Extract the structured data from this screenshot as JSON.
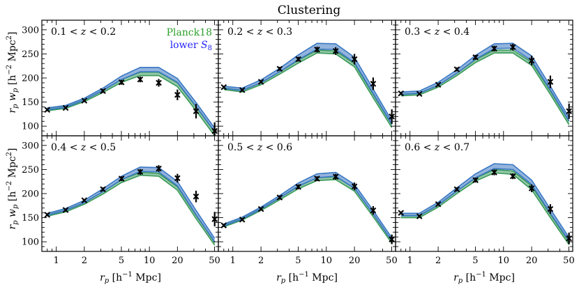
{
  "chart_data": {
    "type": "line",
    "title": "Clustering",
    "xlabel": "r_p [h^-1 Mpc]",
    "ylabel": "r_p w_p [h^-2 Mpc^2]",
    "x_scale": "log",
    "xlim": [
      0.7,
      55
    ],
    "ylim": [
      80,
      320
    ],
    "x_ticks": [
      1,
      2,
      5,
      10,
      20,
      50
    ],
    "y_ticks": [
      100,
      150,
      200,
      250,
      300
    ],
    "legend": {
      "location": "top-right",
      "entries": [
        {
          "name": "Planck18",
          "color": "#2ca02c"
        },
        {
          "name": "lower S8",
          "color": "#1f1fff"
        }
      ]
    },
    "series_colors": {
      "Planck18": "#3a9a5a",
      "lower_S8": "#3a78c4"
    },
    "panels": [
      {
        "label": "0.1 < z < 0.2",
        "x": [
          0.8,
          1.26,
          2.0,
          3.17,
          5.02,
          7.96,
          12.6,
          20.0,
          31.7,
          50.2
        ],
        "planck18_low": [
          132,
          137,
          151,
          170,
          191,
          205,
          205,
          182,
          132,
          80
        ],
        "planck18_high": [
          136,
          141,
          155,
          175,
          197,
          212,
          212,
          190,
          140,
          88
        ],
        "lower_s8_low": [
          134,
          139,
          154,
          174,
          197,
          213,
          213,
          191,
          141,
          89
        ],
        "lower_s8_high": [
          138,
          143,
          158,
          179,
          204,
          222,
          222,
          199,
          149,
          96
        ],
        "data_y": [
          134,
          138,
          153,
          173,
          191,
          197,
          190,
          165,
          131,
          90
        ],
        "data_err": [
          3,
          3,
          3,
          4,
          5,
          6,
          8,
          11,
          15,
          18
        ]
      },
      {
        "label": "0.2 < z < 0.3",
        "x": [
          0.8,
          1.26,
          2.0,
          3.17,
          5.02,
          7.96,
          12.6,
          20.0,
          31.7,
          50.2
        ],
        "planck18_low": [
          176,
          171,
          186,
          208,
          231,
          252,
          250,
          223,
          159,
          97
        ],
        "planck18_high": [
          180,
          175,
          190,
          213,
          237,
          258,
          256,
          230,
          166,
          103
        ],
        "lower_s8_low": [
          178,
          174,
          190,
          213,
          238,
          260,
          259,
          232,
          168,
          104
        ],
        "lower_s8_high": [
          183,
          179,
          196,
          220,
          248,
          272,
          271,
          243,
          177,
          111
        ],
        "data_y": [
          181,
          175,
          192,
          219,
          239,
          259,
          256,
          239,
          188,
          120
        ],
        "data_err": [
          3,
          3,
          3,
          4,
          5,
          6,
          8,
          11,
          13,
          15
        ]
      },
      {
        "label": "0.3 < z < 0.4",
        "x": [
          0.8,
          1.26,
          2.0,
          3.17,
          5.02,
          7.96,
          12.6,
          20.0,
          31.7,
          50.2
        ],
        "planck18_low": [
          163,
          165,
          181,
          205,
          232,
          252,
          252,
          226,
          166,
          103
        ],
        "planck18_high": [
          167,
          169,
          185,
          210,
          238,
          258,
          258,
          233,
          173,
          110
        ],
        "lower_s8_low": [
          166,
          168,
          185,
          210,
          239,
          261,
          262,
          236,
          175,
          111
        ],
        "lower_s8_high": [
          171,
          173,
          191,
          217,
          247,
          271,
          272,
          246,
          183,
          118
        ],
        "data_y": [
          168,
          167,
          186,
          218,
          243,
          261,
          264,
          236,
          192,
          131
        ],
        "data_err": [
          3,
          3,
          3,
          4,
          5,
          6,
          7,
          10,
          13,
          16
        ]
      },
      {
        "label": "0.4 < z < 0.5",
        "x": [
          0.8,
          1.26,
          2.0,
          3.17,
          5.02,
          7.96,
          12.6,
          20.0,
          31.7,
          50.2
        ],
        "planck18_low": [
          153,
          162,
          178,
          199,
          223,
          238,
          236,
          207,
          148,
          93
        ],
        "planck18_high": [
          157,
          166,
          182,
          204,
          229,
          244,
          242,
          214,
          155,
          99
        ],
        "lower_s8_low": [
          155,
          165,
          181,
          204,
          229,
          246,
          245,
          216,
          156,
          100
        ],
        "lower_s8_high": [
          159,
          169,
          186,
          210,
          236,
          255,
          254,
          225,
          165,
          107
        ],
        "data_y": [
          156,
          166,
          186,
          209,
          231,
          245,
          252,
          232,
          194,
          147
        ],
        "data_err": [
          3,
          3,
          3,
          4,
          5,
          6,
          7,
          9,
          12,
          15
        ]
      },
      {
        "label": "0.5 < z < 0.6",
        "x": [
          0.8,
          1.26,
          2.0,
          3.17,
          5.02,
          7.96,
          12.6,
          20.0,
          31.7,
          50.2
        ],
        "planck18_low": [
          131,
          145,
          165,
          187,
          210,
          227,
          229,
          205,
          152,
          97
        ],
        "planck18_high": [
          135,
          149,
          169,
          192,
          216,
          233,
          235,
          212,
          158,
          102
        ],
        "lower_s8_low": [
          133,
          147,
          168,
          191,
          215,
          233,
          236,
          211,
          158,
          102
        ],
        "lower_s8_high": [
          137,
          151,
          172,
          196,
          222,
          241,
          244,
          219,
          165,
          108
        ],
        "data_y": [
          134,
          146,
          168,
          192,
          214,
          231,
          235,
          215,
          165,
          105
        ],
        "data_err": [
          3,
          3,
          3,
          4,
          5,
          5,
          6,
          8,
          9,
          10
        ]
      },
      {
        "label": "0.6 < z < 0.7",
        "x": [
          0.8,
          1.26,
          2.0,
          3.17,
          5.02,
          7.96,
          12.6,
          20.0,
          31.7,
          50.2
        ],
        "planck18_low": [
          150,
          150,
          172,
          200,
          226,
          243,
          240,
          208,
          150,
          94
        ],
        "planck18_high": [
          155,
          155,
          177,
          206,
          232,
          250,
          247,
          216,
          157,
          100
        ],
        "lower_s8_low": [
          154,
          154,
          176,
          205,
          233,
          252,
          250,
          219,
          159,
          102
        ],
        "lower_s8_high": [
          159,
          159,
          182,
          212,
          241,
          262,
          260,
          228,
          168,
          109
        ],
        "data_y": [
          160,
          153,
          178,
          209,
          228,
          244,
          236,
          211,
          168,
          107
        ],
        "data_err": [
          3,
          3,
          3,
          4,
          5,
          6,
          6,
          8,
          10,
          12
        ]
      }
    ]
  },
  "page": {
    "title": "Clustering",
    "ylabel_main": "r",
    "ylabel_sub1": "p",
    "ylabel_w": "w",
    "ylabel_sub2": "p",
    "ylabel_units": "[h",
    "ylabel_exp": "−2",
    "ylabel_units2": " Mpc",
    "ylabel_exp2": "2",
    "ylabel_close": "]",
    "xlabel_main": "r",
    "xlabel_sub": "p",
    "xlabel_units": "[h",
    "xlabel_exp": "−1",
    "xlabel_units2": " Mpc]",
    "legend_planck": "Planck18",
    "legend_s8_prefix": "lower ",
    "legend_s8_sym": "S",
    "legend_s8_sub": "8"
  }
}
